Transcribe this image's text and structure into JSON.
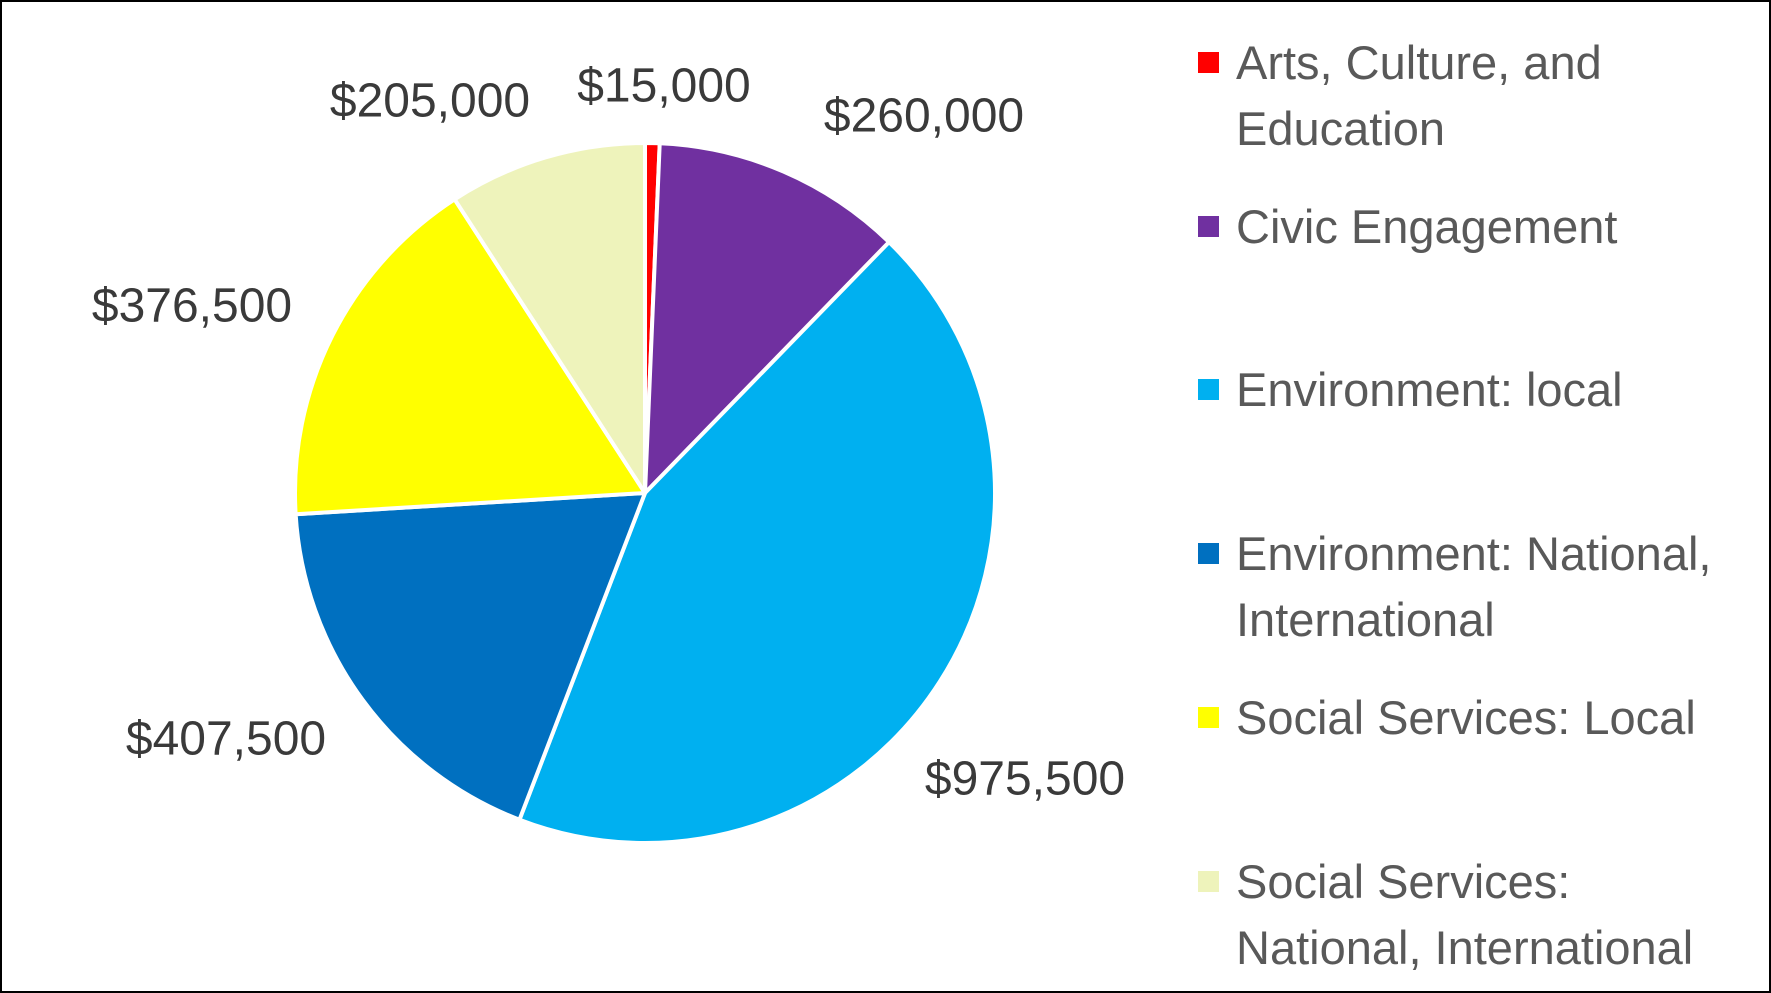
{
  "chart_data": {
    "type": "pie",
    "categories": [
      "Arts, Culture, and Education",
      "Civic Engagement",
      "Environment: local",
      "Environment: National, International",
      "Social Services: Local",
      "Social Services: National, International"
    ],
    "values": [
      15000,
      260000,
      975500,
      407500,
      376500,
      205000
    ],
    "data_labels": [
      "$15,000",
      "$260,000",
      "$975,500",
      "$407,500",
      "$376,500",
      "$205,000"
    ],
    "colors": [
      "#ff0000",
      "#7030a0",
      "#00b0f0",
      "#0070c0",
      "#ffff00",
      "#eef3bb"
    ],
    "start_angle_deg": 0,
    "direction": "clockwise",
    "legend_position": "right",
    "title": ""
  },
  "legend": {
    "items": [
      {
        "label": "Arts, Culture, and Education",
        "color": "#ff0000"
      },
      {
        "label": "Civic Engagement",
        "color": "#7030a0"
      },
      {
        "label": "Environment: local",
        "color": "#00b0f0"
      },
      {
        "label": "Environment: National, International",
        "color": "#0070c0"
      },
      {
        "label": "Social Services: Local",
        "color": "#ffff00"
      },
      {
        "label": "Social Services: National, International",
        "color": "#eef3bb"
      }
    ]
  }
}
